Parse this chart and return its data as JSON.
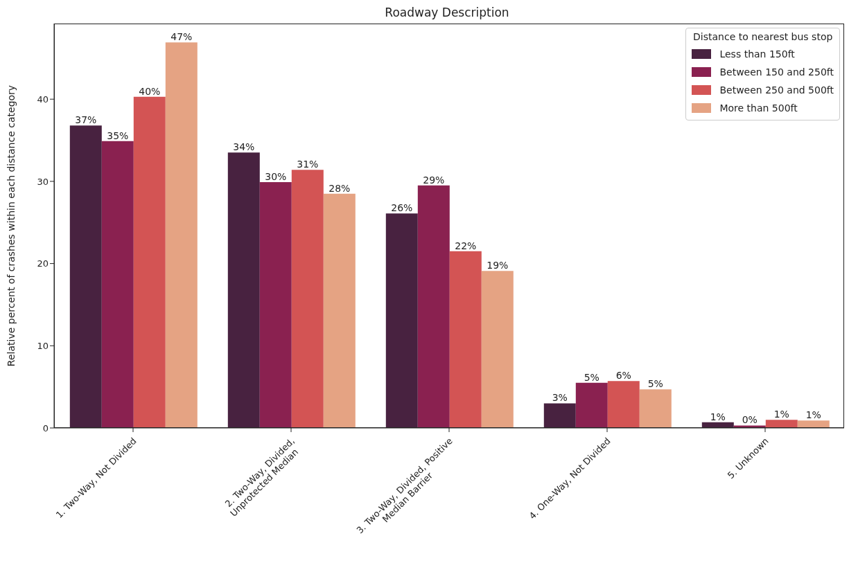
{
  "chart_data": {
    "type": "bar",
    "title": "Roadway Description",
    "ylabel": "Relative percent of crashes within each distance category",
    "legend_title": "Distance to nearest bus stop",
    "categories": [
      "1. Two-Way, Not Divided",
      "2. Two-Way, Divided,\nUnprotected Median",
      "3. Two-Way, Divided, Positive\nMedian Barrier",
      "4. One-Way, Not Divided",
      "5. Unknown"
    ],
    "series": [
      {
        "name": "Less than 150ft",
        "color": "#482240",
        "values": [
          36.8,
          33.5,
          26.1,
          3.0,
          0.7
        ],
        "value_labels": [
          "37%",
          "34%",
          "26%",
          "3%",
          "1%"
        ]
      },
      {
        "name": "Between 150 and 250ft",
        "color": "#8a2150",
        "values": [
          34.9,
          29.9,
          29.5,
          5.5,
          0.3
        ],
        "value_labels": [
          "35%",
          "30%",
          "29%",
          "5%",
          "0%"
        ]
      },
      {
        "name": "Between 250 and 500ft",
        "color": "#d35454",
        "values": [
          40.3,
          31.4,
          21.5,
          5.7,
          1.0
        ],
        "value_labels": [
          "40%",
          "31%",
          "22%",
          "6%",
          "1%"
        ]
      },
      {
        "name": "More than 500ft",
        "color": "#e5a383",
        "values": [
          46.9,
          28.5,
          19.1,
          4.7,
          0.9
        ],
        "value_labels": [
          "47%",
          "28%",
          "19%",
          "5%",
          "1%"
        ]
      }
    ],
    "ylim": [
      0,
      49.2
    ],
    "yticks": [
      0,
      10,
      20,
      30,
      40
    ],
    "grid": false,
    "legend": "top right"
  }
}
